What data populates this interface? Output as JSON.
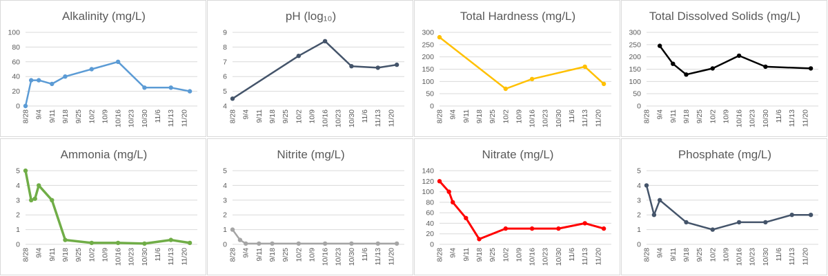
{
  "x_categories": [
    "8/28",
    "9/4",
    "9/11",
    "9/18",
    "9/25",
    "10/2",
    "10/9",
    "10/16",
    "10/23",
    "10/30",
    "11/6",
    "11/13",
    "11/20"
  ],
  "chart_data": [
    {
      "type": "line",
      "title": "Alkalinity (mg/L)",
      "ylim": [
        0,
        100
      ],
      "yticks": [
        0,
        20,
        40,
        60,
        80,
        100
      ],
      "color": "#5b9bd5",
      "series": [
        {
          "x": [
            "8/28",
            "8/31",
            "9/4",
            "9/11",
            "9/18",
            "10/2",
            "10/16",
            "10/30",
            "11/13",
            "11/23"
          ],
          "y": [
            0,
            35,
            35,
            30,
            40,
            50,
            60,
            25,
            25,
            20
          ]
        }
      ]
    },
    {
      "type": "line",
      "title": "pH (log₁₀)",
      "ylim": [
        4,
        9
      ],
      "yticks": [
        4,
        5,
        6,
        7,
        8,
        9
      ],
      "color": "#44546a",
      "series": [
        {
          "x": [
            "8/28",
            "10/2",
            "10/16",
            "10/30",
            "11/13",
            "11/23"
          ],
          "y": [
            4.5,
            7.4,
            8.4,
            6.7,
            6.6,
            6.8
          ]
        }
      ]
    },
    {
      "type": "line",
      "title": "Total Hardness (mg/L)",
      "ylim": [
        0,
        300
      ],
      "yticks": [
        0,
        50,
        100,
        150,
        200,
        250,
        300
      ],
      "color": "#ffc000",
      "series": [
        {
          "x": [
            "8/28",
            "10/2",
            "10/16",
            "11/13",
            "11/23"
          ],
          "y": [
            280,
            70,
            110,
            160,
            90
          ]
        }
      ]
    },
    {
      "type": "line",
      "title": "Total Dissolved Solids (mg/L)",
      "ylim": [
        0,
        300
      ],
      "yticks": [
        0,
        50,
        100,
        150,
        200,
        250,
        300
      ],
      "color": "#000000",
      "series": [
        {
          "x": [
            "9/4",
            "9/11",
            "9/18",
            "10/2",
            "10/16",
            "10/30",
            "11/23"
          ],
          "y": [
            245,
            172,
            128,
            153,
            205,
            160,
            153
          ]
        }
      ]
    },
    {
      "type": "line",
      "title": "Ammonia (mg/L)",
      "ylim": [
        0,
        5
      ],
      "yticks": [
        0,
        1,
        2,
        3,
        4,
        5
      ],
      "color": "#70ad47",
      "line_width": 3.5,
      "series": [
        {
          "x": [
            "8/28",
            "8/31",
            "9/2",
            "9/4",
            "9/11",
            "9/18",
            "10/2",
            "10/16",
            "10/30",
            "11/13",
            "11/23"
          ],
          "y": [
            5,
            3,
            3.1,
            4,
            3,
            0.3,
            0.1,
            0.1,
            0.05,
            0.3,
            0.1
          ]
        }
      ]
    },
    {
      "type": "line",
      "title": "Nitrite (mg/L)",
      "ylim": [
        0,
        5
      ],
      "yticks": [
        0,
        1,
        2,
        3,
        4,
        5
      ],
      "color": "#a5a5a5",
      "series": [
        {
          "x": [
            "8/28",
            "9/1",
            "9/4",
            "9/11",
            "9/18",
            "10/2",
            "10/16",
            "10/30",
            "11/13",
            "11/23"
          ],
          "y": [
            1,
            0.3,
            0.05,
            0.05,
            0.05,
            0.05,
            0.05,
            0.05,
            0.05,
            0.05
          ]
        }
      ]
    },
    {
      "type": "line",
      "title": "Nitrate (mg/L)",
      "ylim": [
        0,
        140
      ],
      "yticks": [
        0,
        20,
        40,
        60,
        80,
        100,
        120,
        140
      ],
      "color": "#ff0000",
      "line_width": 3,
      "series": [
        {
          "x": [
            "8/28",
            "9/2",
            "9/4",
            "9/11",
            "9/18",
            "10/2",
            "10/16",
            "10/30",
            "11/13",
            "11/23"
          ],
          "y": [
            120,
            100,
            80,
            50,
            10,
            30,
            30,
            30,
            40,
            30
          ]
        }
      ]
    },
    {
      "type": "line",
      "title": "Phosphate (mg/L)",
      "ylim": [
        0,
        5
      ],
      "yticks": [
        0,
        1,
        2,
        3,
        4,
        5
      ],
      "color": "#44546a",
      "series": [
        {
          "x": [
            "8/28",
            "9/1",
            "9/4",
            "9/18",
            "10/2",
            "10/16",
            "10/30",
            "11/13",
            "11/23"
          ],
          "y": [
            4,
            2,
            3,
            1.5,
            1,
            1.5,
            1.5,
            2,
            2
          ]
        }
      ]
    }
  ]
}
